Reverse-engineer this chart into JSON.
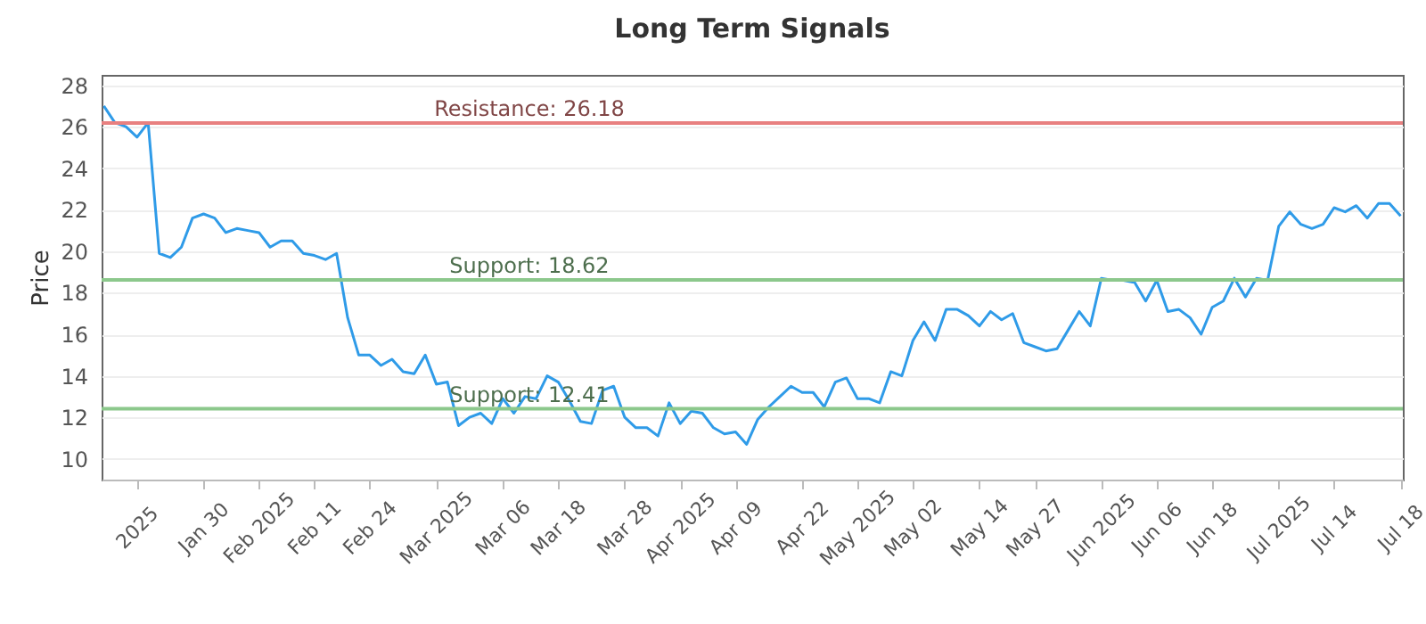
{
  "chart_data": {
    "type": "line",
    "title": "Long Term Signals",
    "ylabel": "Price",
    "categories": [
      null,
      null,
      null,
      "2025",
      null,
      null,
      null,
      null,
      null,
      "Jan 30",
      null,
      null,
      null,
      null,
      "Feb 2025",
      null,
      null,
      null,
      null,
      "Feb 11",
      null,
      null,
      null,
      null,
      "Feb 24",
      null,
      null,
      null,
      null,
      null,
      "Mar 2025",
      null,
      null,
      null,
      null,
      null,
      "Mar 06",
      null,
      null,
      null,
      null,
      "Mar 18",
      null,
      null,
      null,
      null,
      null,
      "Mar 28",
      null,
      null,
      null,
      null,
      "Apr 2025",
      null,
      null,
      null,
      null,
      "Apr 09",
      null,
      null,
      null,
      null,
      null,
      "Apr 22",
      null,
      null,
      null,
      null,
      "May 2025",
      null,
      null,
      null,
      null,
      "May 02",
      null,
      null,
      null,
      null,
      null,
      "May 14",
      null,
      null,
      null,
      null,
      "May 27",
      null,
      null,
      null,
      null,
      null,
      "Jun 2025",
      null,
      null,
      null,
      null,
      "Jun 06",
      null,
      null,
      null,
      null,
      "Jun 18",
      null,
      null,
      null,
      null,
      null,
      "Jul 2025",
      null,
      null,
      null,
      null,
      "Jul 14",
      null,
      null,
      null,
      null,
      null,
      "Jul 18"
    ],
    "series": [
      {
        "color": "#2f9be8",
        "values": [
          27.0,
          26.2,
          26.0,
          25.5,
          26.2,
          19.9,
          19.7,
          20.2,
          21.6,
          21.8,
          21.6,
          20.9,
          21.1,
          21.0,
          20.9,
          20.2,
          20.5,
          20.5,
          19.9,
          19.8,
          19.6,
          19.9,
          16.8,
          15.0,
          15.0,
          14.5,
          14.8,
          14.2,
          14.1,
          15.0,
          13.6,
          13.7,
          11.6,
          12.0,
          12.2,
          11.7,
          12.9,
          12.2,
          13.0,
          12.9,
          14.0,
          13.7,
          12.8,
          11.8,
          11.7,
          13.3,
          13.5,
          12.0,
          11.5,
          11.5,
          11.1,
          12.7,
          11.7,
          12.3,
          12.2,
          11.5,
          11.2,
          11.3,
          10.7,
          11.9,
          12.5,
          13.0,
          13.5,
          13.2,
          13.2,
          12.5,
          13.7,
          13.9,
          12.9,
          12.9,
          12.7,
          14.2,
          14.0,
          15.7,
          16.6,
          15.7,
          17.2,
          17.2,
          16.9,
          16.4,
          17.1,
          16.7,
          17.0,
          15.6,
          15.4,
          15.2,
          15.3,
          16.2,
          17.1,
          16.4,
          18.7,
          18.6,
          18.6,
          18.5,
          17.6,
          18.6,
          17.1,
          17.2,
          16.8,
          16.0,
          17.3,
          17.6,
          18.7,
          17.8,
          18.7,
          18.6,
          21.2,
          21.9,
          21.3,
          21.1,
          21.3,
          22.1,
          21.9,
          22.2,
          21.6,
          22.3,
          22.3,
          21.7
        ]
      }
    ],
    "ylim": [
      9,
      28.5
    ],
    "yticks": [
      10,
      12,
      14,
      16,
      18,
      20,
      22,
      24,
      26,
      28
    ],
    "grid": "y",
    "ref_lines": [
      {
        "axis": "y",
        "value": 26.18,
        "label": "Resistance: 26.18",
        "color": "#e88080"
      },
      {
        "axis": "y",
        "value": 18.62,
        "label": "Support: 18.62",
        "color": "#8cc88c"
      },
      {
        "axis": "y",
        "value": 12.41,
        "label": "Support: 12.41",
        "color": "#8cc88c"
      }
    ]
  }
}
